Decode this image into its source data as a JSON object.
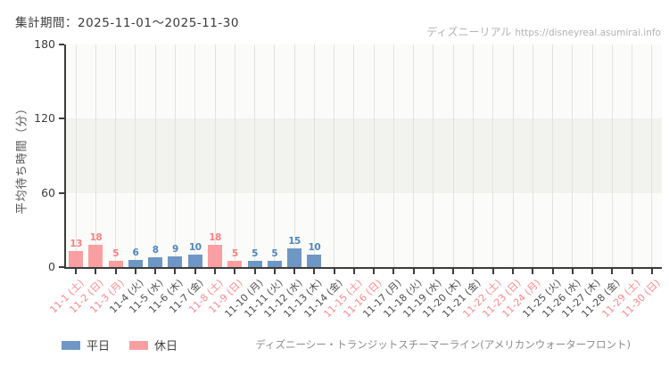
{
  "header": {
    "period_label": "集計期間：2025-11-01～2025-11-30",
    "brand": "ディズニーリアル",
    "brand_url": "https://disneyreal.asumirai.info"
  },
  "chart_data": {
    "type": "bar",
    "title": "",
    "xlabel": "",
    "ylabel": "平均待ち時間（分）",
    "ylim": [
      0,
      180
    ],
    "yticks": [
      0,
      60,
      120,
      180
    ],
    "shaded_band": {
      "from": 60,
      "to": 120
    },
    "grid": "vertical",
    "legend_position": "bottom-left",
    "categories": [
      "11-1 (土)",
      "11-2 (日)",
      "11-3 (月)",
      "11-4 (火)",
      "11-5 (水)",
      "11-6 (木)",
      "11-7 (金)",
      "11-8 (土)",
      "11-9 (日)",
      "11-10 (月)",
      "11-11 (火)",
      "11-12 (水)",
      "11-13 (木)",
      "11-14 (金)",
      "11-15 (土)",
      "11-16 (日)",
      "11-17 (月)",
      "11-18 (火)",
      "11-19 (水)",
      "11-20 (木)",
      "11-21 (金)",
      "11-22 (土)",
      "11-23 (日)",
      "11-24 (月)",
      "11-25 (火)",
      "11-26 (水)",
      "11-27 (木)",
      "11-28 (金)",
      "11-29 (土)",
      "11-30 (日)"
    ],
    "day_types": [
      "holiday",
      "holiday",
      "holiday",
      "weekday",
      "weekday",
      "weekday",
      "weekday",
      "holiday",
      "holiday",
      "weekday",
      "weekday",
      "weekday",
      "weekday",
      "weekday",
      "holiday",
      "holiday",
      "weekday",
      "weekday",
      "weekday",
      "weekday",
      "weekday",
      "holiday",
      "holiday",
      "holiday",
      "weekday",
      "weekday",
      "weekday",
      "weekday",
      "holiday",
      "holiday"
    ],
    "values": [
      13,
      18,
      5,
      6,
      8,
      9,
      10,
      18,
      5,
      5,
      5,
      15,
      10,
      null,
      null,
      null,
      null,
      null,
      null,
      null,
      null,
      null,
      null,
      null,
      null,
      null,
      null,
      null,
      null,
      null
    ],
    "colors": {
      "weekday_bar": "#6f97c5",
      "holiday_bar": "#f99fa1",
      "weekday_value": "#4e86bf",
      "holiday_value": "#f97f83"
    },
    "legend": [
      {
        "key": "weekday",
        "label": "平日"
      },
      {
        "key": "holiday",
        "label": "休日"
      }
    ]
  },
  "footer": {
    "attraction": "ディズニーシー・トランジットスチーマーライン(アメリカンウォーターフロント)"
  }
}
